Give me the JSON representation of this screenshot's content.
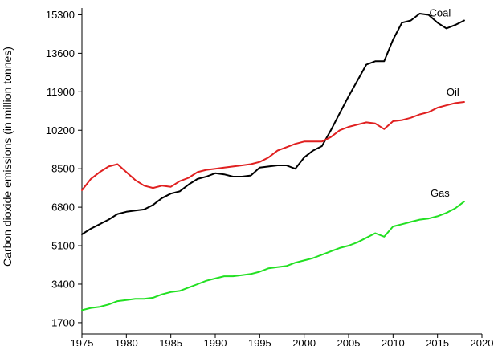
{
  "chart_data": {
    "type": "line",
    "title": "",
    "xlabel": "",
    "ylabel": "Carbon dioxide emissions (in million tonnes)",
    "xlim": [
      1975,
      2020
    ],
    "ylim": [
      1200,
      15600
    ],
    "xticks": [
      1975,
      1980,
      1985,
      1990,
      1995,
      2000,
      2005,
      2010,
      2015,
      2020
    ],
    "yticks": [
      1700,
      3400,
      5100,
      6800,
      8500,
      10200,
      11900,
      13600,
      15300
    ],
    "grid": false,
    "legend": "none",
    "x": [
      1975,
      1976,
      1977,
      1978,
      1979,
      1980,
      1981,
      1982,
      1983,
      1984,
      1985,
      1986,
      1987,
      1988,
      1989,
      1990,
      1991,
      1992,
      1993,
      1994,
      1995,
      1996,
      1997,
      1998,
      1999,
      2000,
      2001,
      2002,
      2003,
      2004,
      2005,
      2006,
      2007,
      2008,
      2009,
      2010,
      2011,
      2012,
      2013,
      2014,
      2015,
      2016,
      2017,
      2018
    ],
    "series": [
      {
        "name": "Coal",
        "color": "#000000",
        "values": [
          5600,
          5850,
          6050,
          6250,
          6500,
          6600,
          6650,
          6700,
          6900,
          7200,
          7400,
          7500,
          7800,
          8050,
          8150,
          8300,
          8250,
          8150,
          8150,
          8200,
          8550,
          8600,
          8650,
          8650,
          8500,
          9000,
          9300,
          9500,
          10200,
          10950,
          11700,
          12400,
          13100,
          13250,
          13250,
          14200,
          14950,
          15050,
          15350,
          15300,
          14950,
          14700,
          14850,
          15050
        ],
        "label_text": "Coal"
      },
      {
        "name": "Oil",
        "color": "#e02020",
        "values": [
          7550,
          8050,
          8350,
          8600,
          8700,
          8350,
          8000,
          7750,
          7650,
          7750,
          7700,
          7950,
          8100,
          8350,
          8450,
          8500,
          8550,
          8600,
          8650,
          8700,
          8800,
          9000,
          9300,
          9450,
          9600,
          9700,
          9700,
          9700,
          9900,
          10200,
          10350,
          10450,
          10550,
          10500,
          10250,
          10600,
          10650,
          10750,
          10900,
          11000,
          11200,
          11300,
          11400,
          11450
        ],
        "label_text": "Oil"
      },
      {
        "name": "Gas",
        "color": "#22e022",
        "values": [
          2250,
          2350,
          2400,
          2500,
          2650,
          2700,
          2750,
          2750,
          2800,
          2950,
          3050,
          3100,
          3250,
          3400,
          3550,
          3650,
          3750,
          3750,
          3800,
          3850,
          3950,
          4100,
          4150,
          4200,
          4350,
          4450,
          4550,
          4700,
          4850,
          5000,
          5100,
          5250,
          5450,
          5650,
          5500,
          5950,
          6050,
          6150,
          6250,
          6300,
          6400,
          6550,
          6750,
          7050
        ],
        "label_text": "Gas"
      }
    ]
  }
}
